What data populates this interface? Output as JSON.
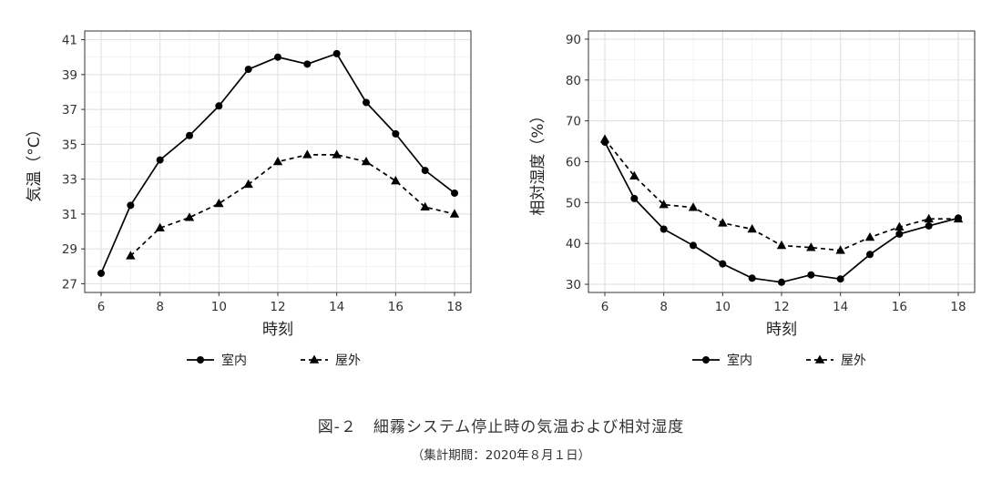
{
  "chart_data": [
    {
      "type": "line",
      "ylabel": "気温（°C）",
      "xlabel": "時刻",
      "xlim": [
        6,
        18
      ],
      "ylim": [
        26.5,
        41.5
      ],
      "xticks": [
        6,
        8,
        10,
        12,
        14,
        16,
        18
      ],
      "yticks": [
        27,
        29,
        31,
        33,
        35,
        37,
        39,
        41
      ],
      "grid": true,
      "legend_position": "bottom",
      "series": [
        {
          "name": "室内",
          "marker": "circle",
          "line": "solid",
          "x": [
            6,
            7,
            8,
            9,
            10,
            11,
            12,
            13,
            14,
            15,
            16,
            17,
            18
          ],
          "y": [
            27.6,
            31.5,
            34.1,
            35.5,
            37.2,
            39.3,
            40.0,
            39.6,
            40.2,
            37.4,
            35.6,
            33.5,
            32.2
          ]
        },
        {
          "name": "屋外",
          "marker": "triangle",
          "line": "dashed",
          "x": [
            7,
            8,
            9,
            10,
            11,
            12,
            13,
            14,
            15,
            16,
            17,
            18
          ],
          "y": [
            28.6,
            30.2,
            30.8,
            31.6,
            32.7,
            34.0,
            34.4,
            34.4,
            34.0,
            32.9,
            31.4,
            31.0
          ]
        }
      ]
    },
    {
      "type": "line",
      "ylabel": "相対湿度（%）",
      "xlabel": "時刻",
      "xlim": [
        6,
        18
      ],
      "ylim": [
        28,
        92
      ],
      "xticks": [
        6,
        8,
        10,
        12,
        14,
        16,
        18
      ],
      "yticks": [
        30,
        40,
        50,
        60,
        70,
        80,
        90
      ],
      "grid": true,
      "legend_position": "bottom",
      "series": [
        {
          "name": "室内",
          "marker": "circle",
          "line": "solid",
          "x": [
            6,
            7,
            8,
            9,
            10,
            11,
            12,
            13,
            14,
            15,
            16,
            17,
            18
          ],
          "y": [
            64.8,
            51.0,
            43.5,
            39.5,
            35.0,
            31.5,
            30.5,
            32.3,
            31.3,
            37.3,
            42.3,
            44.3,
            46.2
          ]
        },
        {
          "name": "屋外",
          "marker": "triangle",
          "line": "dashed",
          "x": [
            6,
            7,
            8,
            9,
            10,
            11,
            12,
            13,
            14,
            15,
            16,
            17,
            18
          ],
          "y": [
            65.5,
            56.5,
            49.5,
            48.8,
            45.0,
            43.5,
            39.5,
            39.0,
            38.3,
            41.5,
            44.0,
            46.0,
            46.0
          ]
        }
      ]
    }
  ],
  "caption": {
    "title": "図-２　細霧システム停止時の気温および相対湿度",
    "subtitle": "（集計期間：2020年８月１日）"
  }
}
